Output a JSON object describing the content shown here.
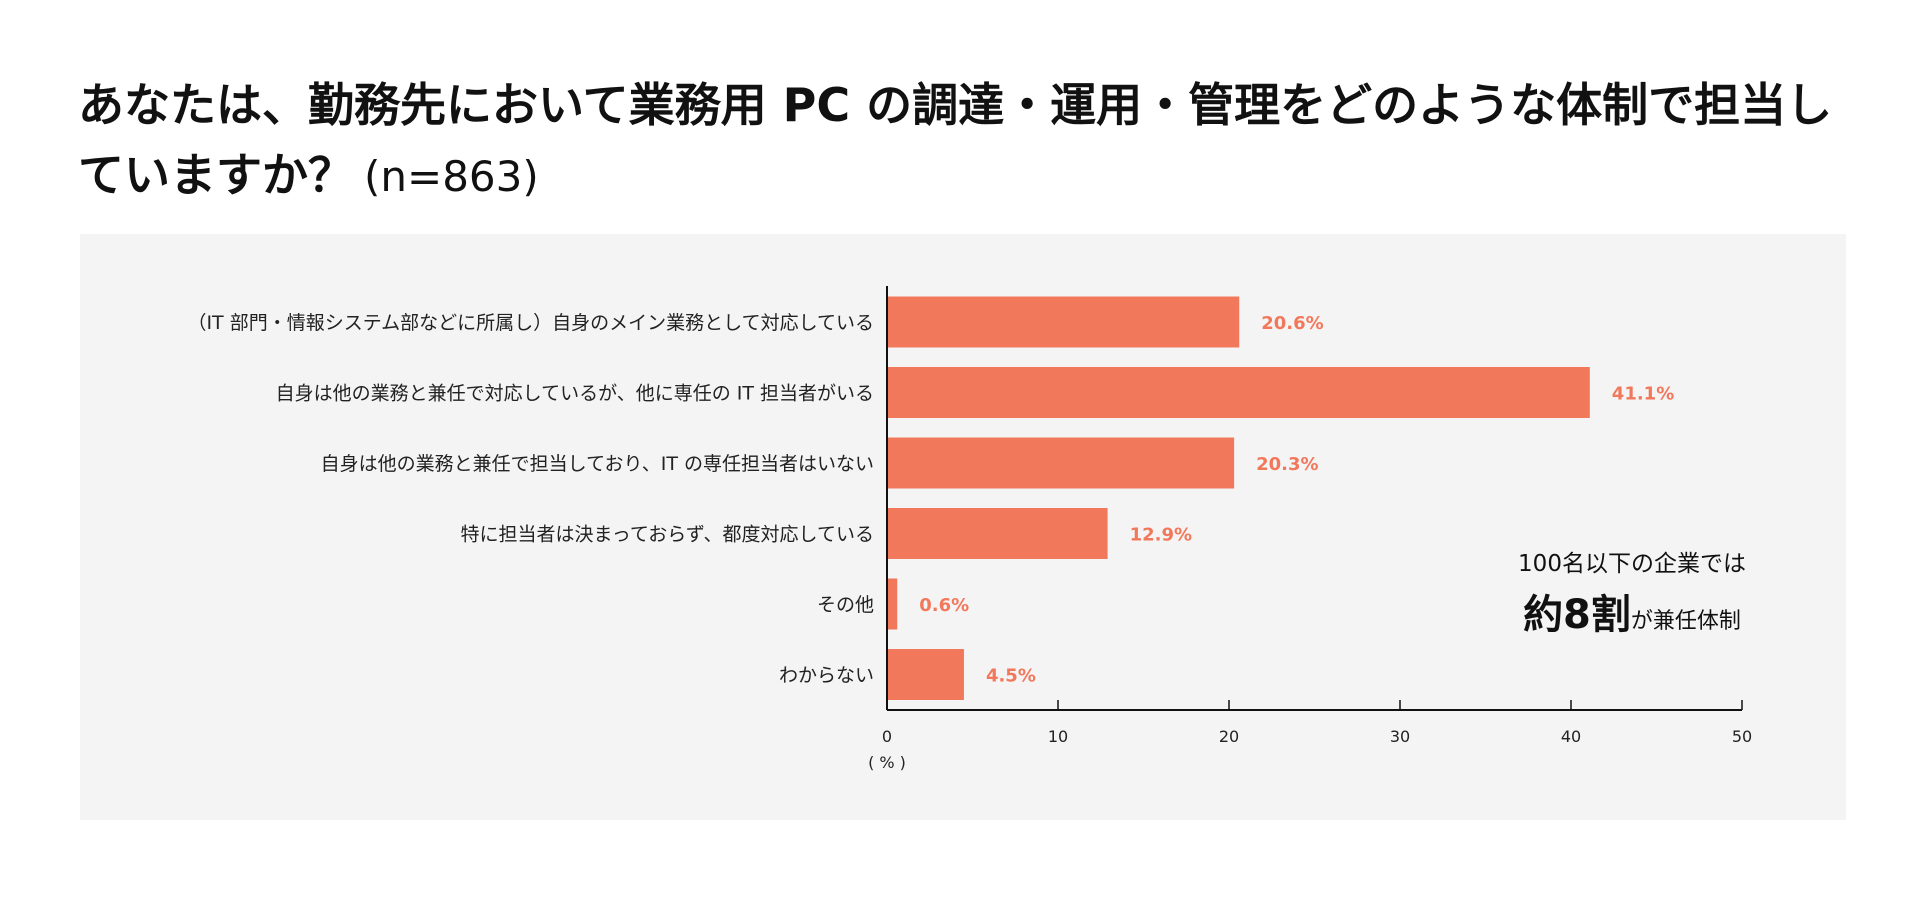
{
  "title": {
    "text": "あなたは、勤務先において業務用 PC の調達・運用・管理をどのような体制で担当していますか？",
    "n_label": "(n=863)"
  },
  "callout": {
    "line1": "100名以下の企業では",
    "emphasis": "約8割",
    "rest": "が兼任体制"
  },
  "colors": {
    "bar": "#f2785c",
    "value_label": "#f2785c",
    "axis": "#111111",
    "panel_bg": "#f4f4f4"
  },
  "chart_data": {
    "type": "bar",
    "orientation": "horizontal",
    "categories": [
      "（IT 部門・情報システム部などに所属し）自身のメイン業務として対応している",
      "自身は他の業務と兼任で対応しているが、他に専任の IT 担当者がいる",
      "自身は他の業務と兼任で担当しており、IT の専任担当者はいない",
      "特に担当者は決まっておらず、都度対応している",
      "その他",
      "わからない"
    ],
    "values": [
      20.6,
      41.1,
      20.3,
      12.9,
      0.6,
      4.5
    ],
    "value_labels": [
      "20.6%",
      "41.1%",
      "20.3%",
      "12.9%",
      "0.6%",
      "4.5%"
    ],
    "xlim": [
      0,
      50
    ],
    "xticks": [
      0,
      10,
      20,
      30,
      40,
      50
    ],
    "xtick_labels": [
      "0",
      "10",
      "20",
      "30",
      "40",
      "50"
    ],
    "xlabel": "( % )",
    "grid": false
  }
}
